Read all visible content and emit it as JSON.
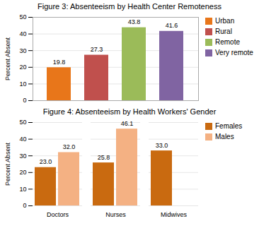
{
  "chart_data": [
    {
      "type": "bar",
      "title": "Figure 3: Absenteeism by Health Center Remoteness",
      "categories": [
        "Urban",
        "Rural",
        "Remote",
        "Very remote"
      ],
      "values": [
        19.8,
        27.3,
        43.8,
        41.6
      ],
      "colors": [
        "#E8761A",
        "#C0504D",
        "#9BBB59",
        "#8064A2"
      ],
      "ylabel": "Percent Absent",
      "ylim": [
        0,
        50
      ],
      "yticks": [
        0,
        10,
        20,
        30,
        40,
        50
      ],
      "grid": true,
      "data_labels": true,
      "legend": "right",
      "tick_labels": "y"
    },
    {
      "type": "bar",
      "title": "Figure 4: Absenteeism by Health Workers' Gender",
      "categories": [
        "Doctors",
        "Nurses",
        "Midwives"
      ],
      "series": [
        {
          "name": "Females",
          "color": "#C96A10",
          "values": [
            23.0,
            25.8,
            33.0
          ],
          "value_labels": [
            "23.0",
            "25.8",
            "33.0"
          ]
        },
        {
          "name": "Males",
          "color": "#F4B183",
          "values": [
            32.0,
            46.1,
            null
          ],
          "value_labels": [
            "32.0",
            "46.1",
            null
          ]
        }
      ],
      "ylabel": "Percent Absent",
      "ylim": [
        0,
        50
      ],
      "yticks": [
        0,
        10,
        20,
        30,
        40,
        50
      ],
      "grid": true,
      "data_labels": true,
      "legend": "right"
    }
  ]
}
